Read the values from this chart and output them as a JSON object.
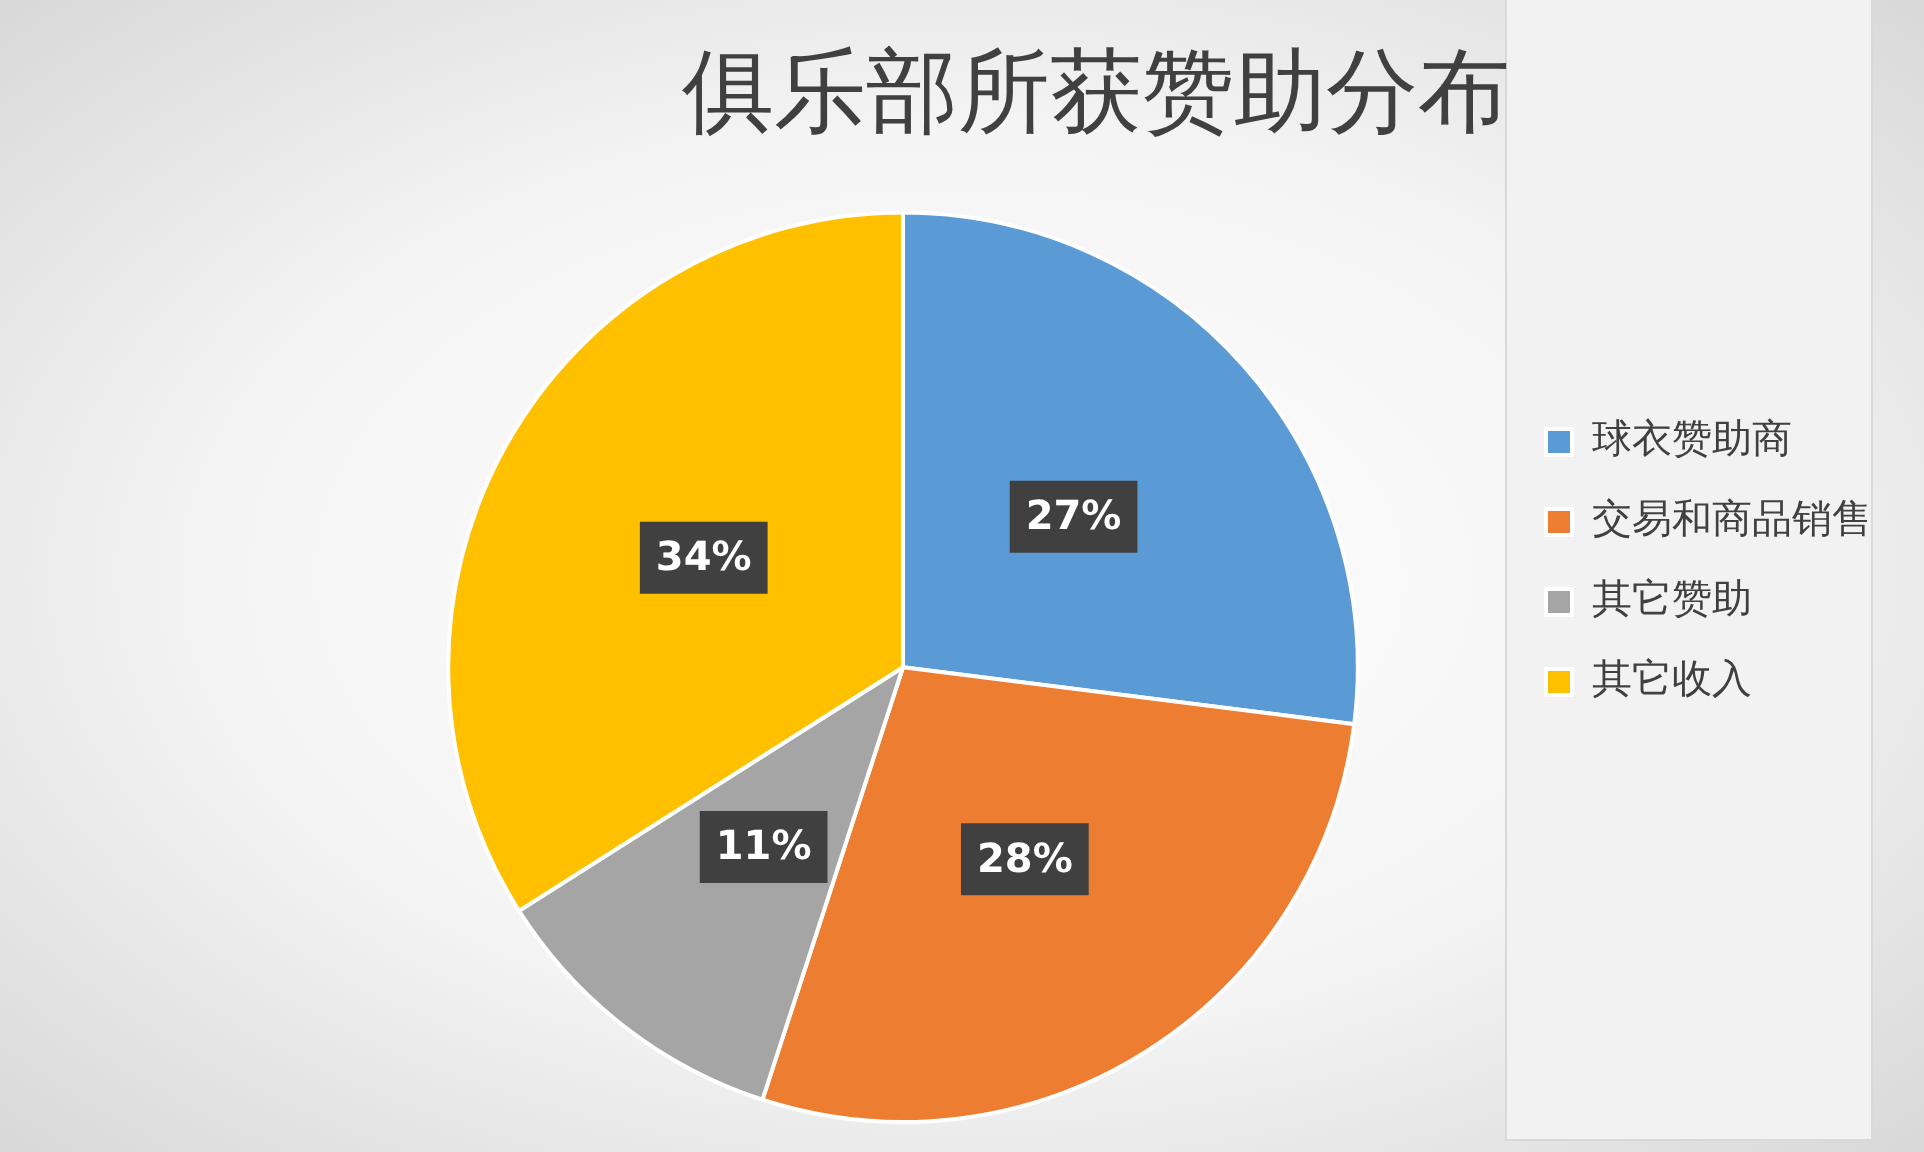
{
  "chart_data": {
    "type": "pie",
    "title": "俱乐部所获赞助分布",
    "categories": [
      "球衣赞助商",
      "交易和商品销售",
      "其它赞助",
      "其它收入"
    ],
    "values": [
      27,
      28,
      11,
      34
    ],
    "colors": [
      "#5b9bd5",
      "#ed7d31",
      "#a5a5a5",
      "#ffc000"
    ],
    "value_labels": [
      "27%",
      "28%",
      "11%",
      "34%"
    ],
    "legend": "right"
  }
}
